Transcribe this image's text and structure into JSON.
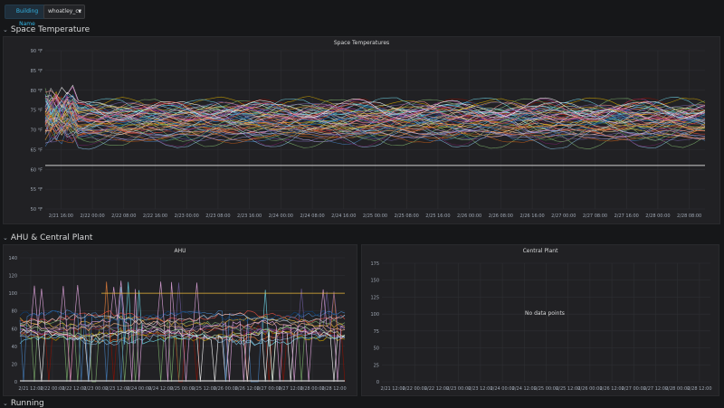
{
  "variables": {
    "label": "Building Name",
    "value": "whoatley_cc"
  },
  "rows": {
    "space": "Space Temperature",
    "ahu_row": "AHU & Central Plant",
    "running": "Running"
  },
  "colors": {
    "bg": "#161719",
    "panel": "#212124",
    "accent": "#33b5e5",
    "grid": "#2e2f33"
  },
  "chart_data": [
    {
      "type": "line",
      "title": "Space Temperatures",
      "yticks": [
        "90 °F",
        "85 °F",
        "80 °F",
        "75 °F",
        "70 °F",
        "65 °F",
        "60 °F",
        "55 °F",
        "50 °F"
      ],
      "xticks": [
        "2/21 16:00",
        "2/22 00:00",
        "2/22 08:00",
        "2/22 16:00",
        "2/23 00:00",
        "2/23 08:00",
        "2/23 16:00",
        "2/24 00:00",
        "2/24 08:00",
        "2/24 16:00",
        "2/25 00:00",
        "2/25 08:00",
        "2/25 16:00",
        "2/26 00:00",
        "2/26 08:00",
        "2/26 16:00",
        "2/27 00:00",
        "2/27 08:00",
        "2/27 16:00",
        "2/28 00:00",
        "2/28 08:00"
      ],
      "ylim": [
        50,
        90
      ],
      "series_count": 60,
      "band": [
        65,
        80
      ]
    },
    {
      "type": "line",
      "title": "AHU",
      "yticks": [
        "140",
        "120",
        "100",
        "80",
        "60",
        "40",
        "20",
        "0"
      ],
      "xticks": [
        "2/21 12:00",
        "2/22 00:00",
        "2/22 12:00",
        "2/23 00:00",
        "2/23 12:00",
        "2/24 00:00",
        "2/24 12:00",
        "2/25 00:00",
        "2/25 12:00",
        "2/26 00:00",
        "2/26 12:00",
        "2/27 00:00",
        "2/27 12:00",
        "2/28 00:00",
        "2/28 12:00"
      ],
      "ylim": [
        0,
        140
      ],
      "series_count": 18
    },
    {
      "type": "line",
      "title": "Central Plant",
      "yticks": [
        "175",
        "150",
        "125",
        "100",
        "75",
        "50",
        "25",
        "0"
      ],
      "xticks": [
        "2/21 12:00",
        "2/22 00:00",
        "2/22 12:00",
        "2/23 00:00",
        "2/23 12:00",
        "2/24 00:00",
        "2/24 12:00",
        "2/25 00:00",
        "2/25 12:00",
        "2/26 00:00",
        "2/26 12:00",
        "2/27 00:00",
        "2/27 12:00",
        "2/28 00:00",
        "2/28 12:00"
      ],
      "ylim": [
        0,
        175
      ],
      "empty_message": "No data points"
    }
  ]
}
